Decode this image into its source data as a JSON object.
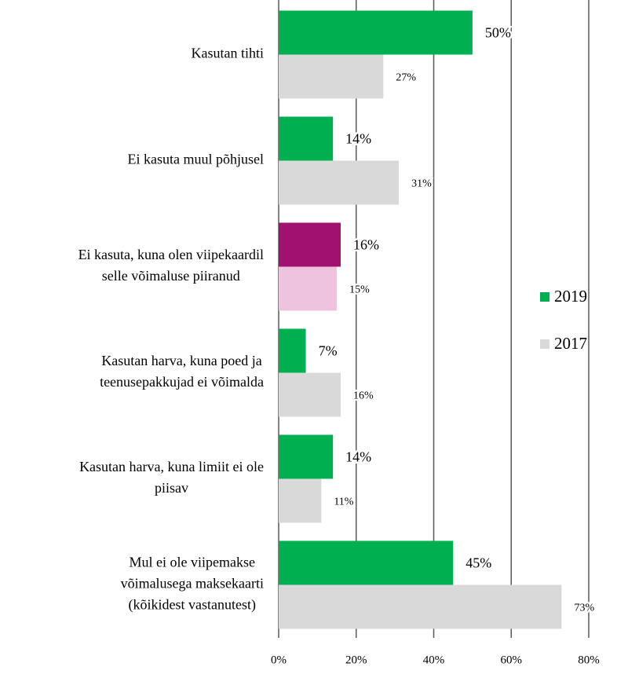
{
  "chart_data": {
    "type": "barh",
    "categories": [
      [
        "Kasutan tihti"
      ],
      [
        "Ei kasuta muul põhjusel"
      ],
      [
        "Ei kasuta, kuna olen viipekaardil",
        "selle võimaluse piiranud"
      ],
      [
        "Kasutan harva, kuna poed ja",
        "teenusepakkujad ei võimalda"
      ],
      [
        "Kasutan harva, kuna limiit ei ole",
        "piisav"
      ],
      [
        "Mul ei ole viipemakse",
        "võimalusega maksekaarti",
        "(kõikidest vastanutest)"
      ]
    ],
    "series": [
      {
        "name": "2019",
        "color": "#00b050",
        "colors": [
          "#00b050",
          "#00b050",
          "#a0126e",
          "#00b050",
          "#00b050",
          "#00b050"
        ],
        "values": [
          50,
          14,
          16,
          7,
          14,
          45
        ],
        "value_labels": [
          "50%",
          "14%",
          "16%",
          "7%",
          "14%",
          "45%"
        ]
      },
      {
        "name": "2017",
        "color": "#d9d9d9",
        "colors": [
          "#d9d9d9",
          "#d9d9d9",
          "#eec3e0",
          "#d9d9d9",
          "#d9d9d9",
          "#d9d9d9"
        ],
        "values": [
          27,
          31,
          15,
          16,
          11,
          73
        ],
        "value_labels": [
          "27%",
          "31%",
          "15%",
          "16%",
          "11%",
          "73%"
        ]
      }
    ],
    "xlim": [
      0,
      80
    ],
    "xticks": [
      {
        "value": 0,
        "label": "0%"
      },
      {
        "value": 20,
        "label": "20%"
      },
      {
        "value": 40,
        "label": "40%"
      },
      {
        "value": 60,
        "label": "60%"
      },
      {
        "value": 80,
        "label": "80%"
      }
    ],
    "grid": true,
    "legend": "right"
  }
}
